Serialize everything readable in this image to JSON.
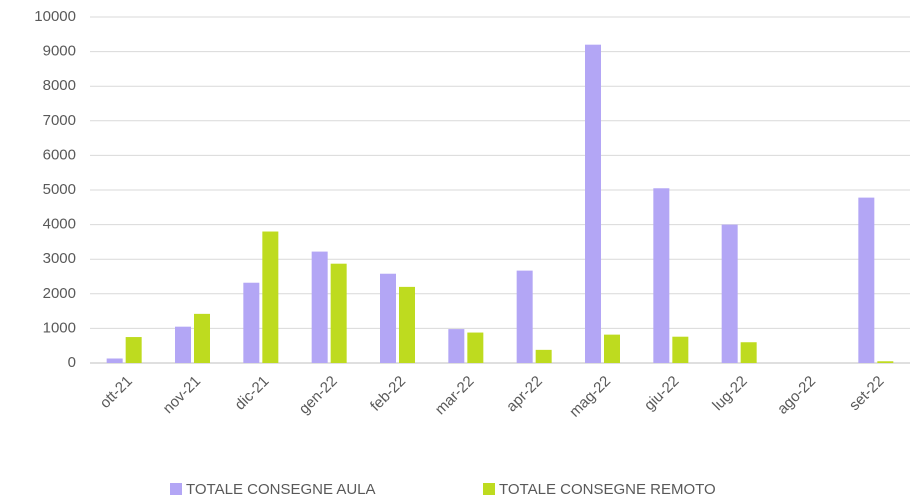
{
  "chart_data": {
    "type": "bar",
    "categories": [
      "ott-21",
      "nov-21",
      "dic-21",
      "gen-22",
      "feb-22",
      "mar-22",
      "apr-22",
      "mag-22",
      "giu-22",
      "lug-22",
      "ago-22",
      "set-22"
    ],
    "series": [
      {
        "name": "TOTALE CONSEGNE AULA",
        "color": "#b3a6f5",
        "values": [
          130,
          1050,
          2320,
          3220,
          2580,
          980,
          2670,
          9200,
          5050,
          4000,
          0,
          4780
        ]
      },
      {
        "name": "TOTALE CONSEGNE REMOTO",
        "color": "#bedb1f",
        "values": [
          750,
          1420,
          3800,
          2870,
          2200,
          880,
          380,
          820,
          760,
          600,
          0,
          50
        ]
      }
    ],
    "ylim": [
      0,
      10000
    ],
    "yticks": [
      0,
      1000,
      2000,
      3000,
      4000,
      5000,
      6000,
      7000,
      8000,
      9000,
      10000
    ],
    "grid": true,
    "legend": "bottom"
  }
}
